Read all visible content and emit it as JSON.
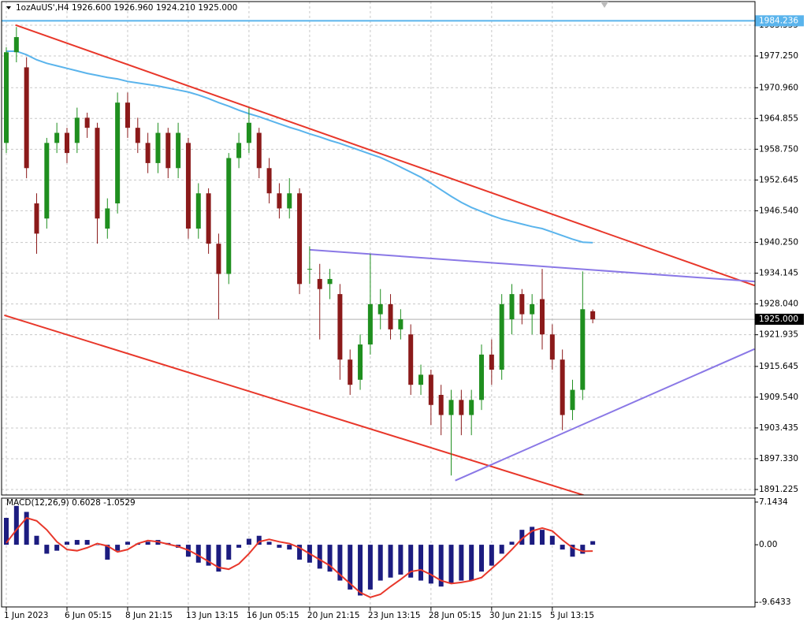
{
  "chart_data": [
    {
      "type": "candlestick",
      "title": "1ozAuUS',H4  1926.600 1926.960 1924.210 1925.000",
      "categories": [
        "1 Jun 2023",
        null,
        null,
        null,
        null,
        null,
        "6 Jun 05:15",
        null,
        null,
        null,
        null,
        null,
        "8 Jun 21:15",
        null,
        null,
        null,
        null,
        null,
        "13 Jun 13:15",
        null,
        null,
        null,
        null,
        null,
        "16 Jun 05:15",
        null,
        null,
        null,
        null,
        null,
        "20 Jun 21:15",
        null,
        null,
        null,
        null,
        null,
        "23 Jun 13:15",
        null,
        null,
        null,
        null,
        null,
        "28 Jun 05:15",
        null,
        null,
        null,
        null,
        null,
        "30 Jun 21:15",
        null,
        null,
        null,
        null,
        null,
        "5 Jul 13:15",
        null,
        null,
        null,
        null
      ],
      "open": [
        1960,
        1978,
        1975,
        1948,
        1945,
        1960,
        1962,
        1960,
        1965,
        1963,
        1943,
        1948,
        1968,
        1963,
        1960,
        1956,
        1962,
        1955,
        1960,
        1943,
        1950,
        1940,
        1934,
        1957,
        1960,
        1962,
        1955,
        1950,
        1947,
        1950,
        1935,
        1933,
        1932,
        1930,
        1917,
        1913,
        1920,
        1926,
        1928,
        1923,
        1922,
        1912,
        1914,
        1910,
        1906,
        1909,
        1906,
        1909,
        1918,
        1915,
        1925,
        1930,
        1926,
        1929,
        1922,
        1917,
        1907,
        1911,
        1926.6
      ],
      "high": [
        1979,
        1983,
        1977,
        1950,
        1961,
        1964,
        1963,
        1967,
        1966,
        1964,
        1949,
        1970,
        1970,
        1965,
        1962,
        1964,
        1963,
        1964,
        1961,
        1952,
        1951,
        1942,
        1958,
        1962,
        1967,
        1963,
        1957,
        1952,
        1953,
        1951,
        1939.5,
        1936,
        1935,
        1932,
        1919,
        1922,
        1938,
        1931,
        1930,
        1927,
        1924,
        1916,
        1915,
        1912,
        1911,
        1911,
        1911,
        1920,
        1921,
        1930,
        1932,
        1931,
        1930,
        1935,
        1924,
        1919,
        1913,
        1934.5,
        1926.96
      ],
      "low": [
        1958,
        1976,
        1953,
        1938,
        1943,
        1958,
        1956,
        1958,
        1961,
        1940,
        1941,
        1946,
        1961,
        1958,
        1954,
        1954,
        1953,
        1953,
        1941,
        1941,
        1938,
        1925,
        1932,
        1955,
        1958,
        1953,
        1948,
        1945,
        1945,
        1930,
        1932,
        1921,
        1929,
        1913,
        1910,
        1911,
        1918,
        1923,
        1921,
        1921,
        1910,
        1910,
        1904,
        1902,
        1894,
        1902,
        1902,
        1907,
        1912,
        1913,
        1922,
        1924,
        1922,
        1919,
        1915,
        1903,
        1905,
        1909,
        1924.21
      ],
      "close": [
        1978,
        1981,
        1955,
        1942,
        1960,
        1962,
        1958,
        1965,
        1963,
        1945,
        1947,
        1968,
        1963,
        1960,
        1956,
        1962,
        1955,
        1962,
        1943,
        1950,
        1940,
        1934,
        1957,
        1960,
        1964,
        1955,
        1950,
        1947,
        1950,
        1932,
        1935,
        1931,
        1933,
        1917,
        1912,
        1920,
        1928,
        1928,
        1923,
        1925,
        1912,
        1914,
        1908,
        1906,
        1909,
        1906,
        1909,
        1918,
        1915,
        1928,
        1930,
        1926,
        1928,
        1922,
        1917,
        1906,
        1911,
        1927,
        1925
      ],
      "up_color": "#1f8f1f",
      "down_color": "#8b1a1a",
      "ma": {
        "color": "#5ab4ec",
        "values": [
          1978.2,
          1978.2,
          1977.5,
          1976.5,
          1975.8,
          1975.3,
          1974.8,
          1974.3,
          1973.8,
          1973.4,
          1973.0,
          1972.7,
          1972.2,
          1971.9,
          1971.6,
          1971.3,
          1970.9,
          1970.5,
          1970.1,
          1969.5,
          1968.8,
          1968.0,
          1967.3,
          1966.5,
          1965.8,
          1965.2,
          1964.5,
          1963.8,
          1963.1,
          1962.5,
          1961.8,
          1961.2,
          1960.5,
          1959.9,
          1959.2,
          1958.5,
          1957.8,
          1957.1,
          1956.2,
          1955.2,
          1954.2,
          1953.2,
          1952.0,
          1950.7,
          1949.4,
          1948.2,
          1947.2,
          1946.4,
          1945.6,
          1944.9,
          1944.4,
          1943.9,
          1943.4,
          1943.0,
          1942.3,
          1941.6,
          1940.9,
          1940.3,
          1940.2
        ]
      },
      "trendlines": [
        {
          "color": "#e8372a",
          "x": [
            0.9,
            74
          ],
          "y": [
            1983.4,
            1931.7
          ]
        },
        {
          "color": "#e8372a",
          "x": [
            -0.2,
            57.1
          ],
          "y": [
            1925.8,
            1890.1
          ]
        },
        {
          "color": "#8a78e6",
          "x": [
            30,
            74
          ],
          "y": [
            1938.8,
            1932.5
          ]
        },
        {
          "color": "#8a78e6",
          "x": [
            44.4,
            74
          ],
          "y": [
            1893.0,
            1919.1
          ]
        }
      ],
      "hline": {
        "value": 1984.236,
        "color": "#5ab4ec"
      },
      "current_price": {
        "value": 1925,
        "label": "1925.000"
      },
      "ylim": [
        1890.13,
        1988.05
      ],
      "yticks": [
        1983.355,
        {
          "value": 1977.25,
          "label": "1977.250"
        },
        {
          "value": 1970.96,
          "label": "1970.960"
        },
        1964.855,
        {
          "value": 1958.75,
          "label": "1958.750"
        },
        1952.645,
        {
          "value": 1946.54,
          "label": "1946.540"
        },
        {
          "value": 1940.25,
          "label": "1940.250"
        },
        1934.145,
        {
          "value": 1928.04,
          "label": "1928.040"
        },
        1921.935,
        1915.645,
        {
          "value": 1909.54,
          "label": "1909.540"
        },
        1903.435,
        {
          "value": 1897.33,
          "label": "1897.330"
        },
        1891.225
      ],
      "grid": true
    },
    {
      "type": "macd",
      "title": "MACD(12,26,9) 0.6028 -1.0529",
      "histogram": {
        "color": "#1c1c80",
        "values": [
          4.5,
          6.5,
          5.5,
          1.5,
          -1.5,
          -1,
          0.5,
          0.8,
          0.8,
          0,
          -2.5,
          -1,
          0.5,
          0.2,
          0.5,
          0.8,
          0.3,
          -0.5,
          -2,
          -3,
          -3.5,
          -4.5,
          -2.5,
          -0.5,
          1,
          1.5,
          0.5,
          -0.5,
          -0.8,
          -2.5,
          -3,
          -4,
          -4.5,
          -6,
          -7.5,
          -8.5,
          -7.5,
          -6,
          -5.5,
          -5,
          -5.5,
          -6,
          -6.5,
          -7,
          -6.5,
          -6,
          -6,
          -4.5,
          -3.5,
          -1.5,
          0.5,
          2.5,
          3,
          2.5,
          1.5,
          -0.8,
          -2,
          -1.5,
          0.6028
        ]
      },
      "signal": {
        "color": "#e8372a",
        "values": [
          0.3,
          2.5,
          4.5,
          4.0,
          2.5,
          0.5,
          -0.8,
          -1.0,
          -0.5,
          0.2,
          -0.2,
          -1.2,
          -0.8,
          0.2,
          0.7,
          0.5,
          0.1,
          -0.3,
          -0.9,
          -1.8,
          -2.8,
          -3.8,
          -4.1,
          -3.2,
          -1.5,
          0.5,
          0.9,
          0.5,
          0.2,
          -0.5,
          -1.5,
          -2.5,
          -3.5,
          -5.0,
          -6.5,
          -8.0,
          -8.8,
          -8.3,
          -7.0,
          -5.8,
          -4.5,
          -4.2,
          -5.0,
          -6.0,
          -6.5,
          -6.3,
          -6.0,
          -5.5,
          -4.0,
          -2.5,
          -0.8,
          1.0,
          2.3,
          2.8,
          2.3,
          0.8,
          -0.5,
          -1.1,
          -1.0529
        ]
      },
      "ylim": [
        -10.15,
        7.8
      ],
      "yticks": [
        7.1434,
        {
          "value": 0,
          "label": "0.00"
        },
        -9.6433
      ]
    }
  ]
}
